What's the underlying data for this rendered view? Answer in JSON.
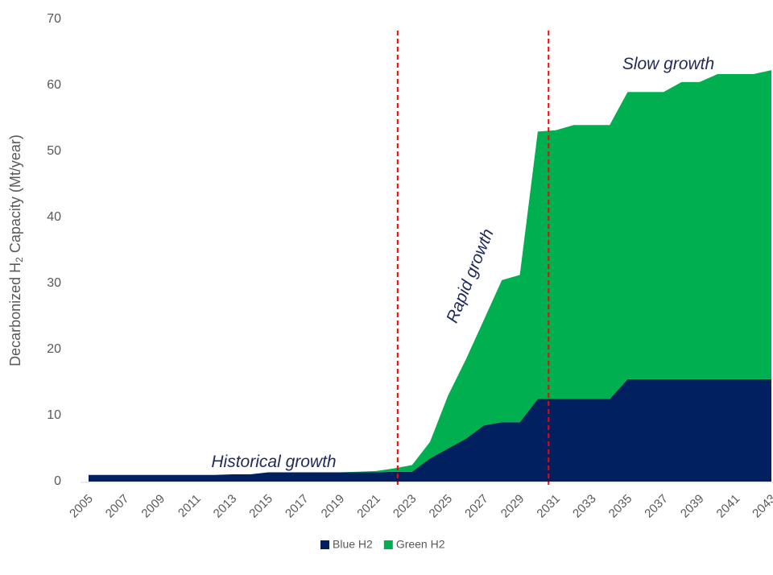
{
  "chart_data": {
    "type": "stacked_area",
    "ylabel": [
      "Decarbonized H",
      "2",
      " Capacity (Mt/year)"
    ],
    "x": [
      2005,
      2006,
      2007,
      2008,
      2009,
      2010,
      2011,
      2012,
      2013,
      2014,
      2015,
      2016,
      2017,
      2018,
      2019,
      2020,
      2021,
      2022,
      2023,
      2024,
      2025,
      2026,
      2027,
      2028,
      2029,
      2030,
      2031,
      2032,
      2033,
      2034,
      2035,
      2036,
      2037,
      2038,
      2039,
      2040,
      2041,
      2042,
      2043
    ],
    "series": [
      {
        "name": "Blue H2",
        "color": "#002060",
        "values": [
          1.0,
          1.0,
          1.0,
          1.0,
          1.0,
          1.0,
          1.0,
          1.0,
          1.1,
          1.1,
          1.4,
          1.4,
          1.4,
          1.4,
          1.4,
          1.4,
          1.4,
          1.5,
          1.5,
          3.5,
          5.0,
          6.5,
          8.5,
          9.0,
          9.0,
          12.5,
          12.5,
          12.5,
          12.5,
          12.5,
          15.5,
          15.5,
          15.5,
          15.5,
          15.5,
          15.5,
          15.5,
          15.5,
          15.5
        ]
      },
      {
        "name": "Green H2",
        "color": "#00b050",
        "values": [
          0,
          0,
          0,
          0,
          0,
          0,
          0,
          0,
          0,
          0,
          0,
          0,
          0,
          0,
          0,
          0.1,
          0.2,
          0.5,
          1.0,
          2.5,
          8,
          12,
          16,
          21.5,
          22.3,
          40.5,
          40.7,
          41.5,
          41.5,
          41.5,
          43.5,
          43.5,
          43.5,
          45,
          45,
          46.2,
          46.2,
          46.2,
          46.8
        ]
      }
    ],
    "xlim": [
      2005,
      2043
    ],
    "xticks": [
      2005,
      2007,
      2009,
      2011,
      2013,
      2015,
      2017,
      2019,
      2021,
      2023,
      2025,
      2027,
      2029,
      2031,
      2033,
      2035,
      2037,
      2039,
      2041,
      2043
    ],
    "ylim": [
      0,
      70
    ],
    "yticks": [
      0,
      10,
      20,
      30,
      40,
      50,
      60,
      70
    ],
    "vlines": [
      2022.2,
      2030.6
    ],
    "vline_color": "#ff0000",
    "annotations": [
      "Historical growth",
      "Rapid growth",
      "Slow growth"
    ],
    "legend": "bottom"
  }
}
